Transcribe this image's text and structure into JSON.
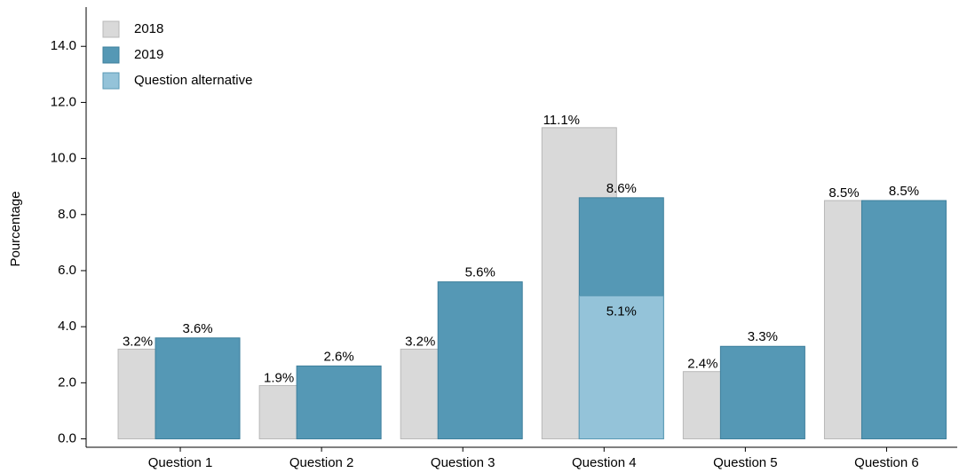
{
  "chart_data": {
    "type": "bar",
    "y_label": "Pourcentage",
    "categories": [
      "Question 1",
      "Question 2",
      "Question 3",
      "Question 4",
      "Question 5",
      "Question 6"
    ],
    "series": [
      {
        "name": "2018",
        "color": "#d9d9d9",
        "values": [
          3.2,
          1.9,
          3.2,
          11.1,
          2.4,
          8.5
        ],
        "value_labels": [
          "3.2%",
          "1.9%",
          "3.2%",
          "11.1%",
          "2.4%",
          "8.5%"
        ]
      },
      {
        "name": "2019",
        "color": "#5598b5",
        "values": [
          3.6,
          2.6,
          5.6,
          8.6,
          3.3,
          8.5
        ],
        "value_labels": [
          "3.6%",
          "2.6%",
          "5.6%",
          "8.6%",
          "3.3%",
          "8.5%"
        ]
      },
      {
        "name": "Question alternative",
        "color": "#94c3d9",
        "values": [
          null,
          null,
          null,
          5.1,
          null,
          null
        ],
        "value_labels": [
          null,
          null,
          null,
          "5.1%",
          null,
          null
        ]
      }
    ],
    "ylim": [
      -0.3,
      15.4
    ],
    "yticks": [
      {
        "value": 0,
        "label": "0.0"
      },
      {
        "value": 2,
        "label": "2.0"
      },
      {
        "value": 4,
        "label": "4.0"
      },
      {
        "value": 6,
        "label": "6.0"
      },
      {
        "value": 8,
        "label": "8.0"
      },
      {
        "value": 10,
        "label": "10.0"
      },
      {
        "value": 12,
        "label": "12.0"
      },
      {
        "value": 14,
        "label": "14.0"
      }
    ],
    "legend": "top-left"
  }
}
